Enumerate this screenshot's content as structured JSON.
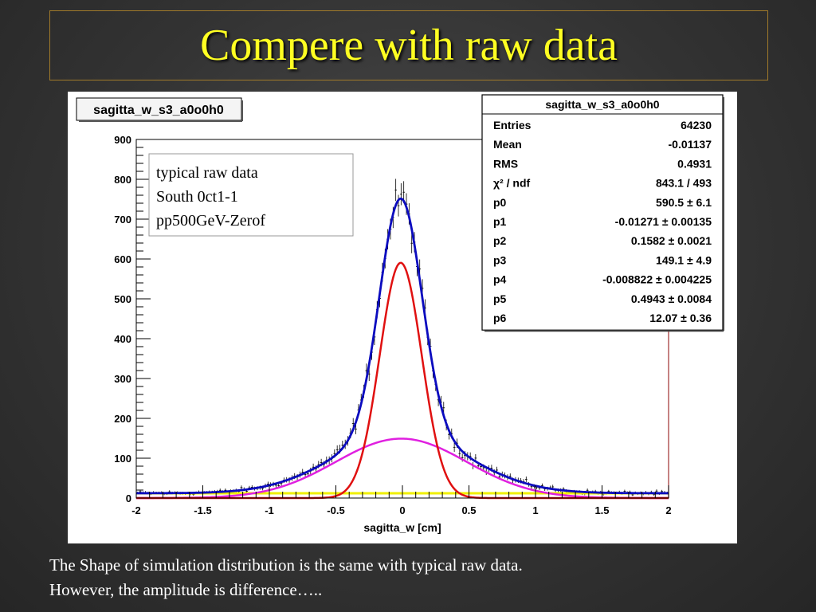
{
  "slide": {
    "title": "Compere with raw data",
    "caption_lines": [
      "The Shape of simulation distribution is the same with typical raw data.",
      "However, the amplitude is difference….."
    ]
  },
  "chart_data": {
    "type": "line",
    "title": "sagitta_w_s3_a0o0h0",
    "xlabel": "sagitta_w [cm]",
    "ylabel": "",
    "xlim": [
      -2,
      2
    ],
    "ylim": [
      0,
      900
    ],
    "xticks": [
      "-2",
      "-1.5",
      "-1",
      "-0.5",
      "0",
      "0.5",
      "1",
      "1.5",
      "2"
    ],
    "yticks": [
      "0",
      "100",
      "200",
      "300",
      "400",
      "500",
      "600",
      "700",
      "800",
      "900"
    ],
    "annotation": [
      "typical  raw data",
      "South 0ct1-1",
      "pp500GeV-Zerof"
    ],
    "stats_box": {
      "title": "sagitta_w_s3_a0o0h0",
      "rows": [
        {
          "label": "Entries",
          "value": "64230"
        },
        {
          "label": "Mean",
          "value": "-0.01137"
        },
        {
          "label": "RMS",
          "value": "0.4931"
        },
        {
          "label": "χ² / ndf",
          "value": "843.1 / 493"
        },
        {
          "label": "p0",
          "value": "590.5 ± 6.1"
        },
        {
          "label": "p1",
          "value": "-0.01271 ± 0.00135"
        },
        {
          "label": "p2",
          "value": "0.1582 ± 0.0021"
        },
        {
          "label": "p3",
          "value": "149.1 ± 4.9"
        },
        {
          "label": "p4",
          "value": "-0.008822 ± 0.004225"
        },
        {
          "label": "p5",
          "value": "0.4943 ± 0.0084"
        },
        {
          "label": "p6",
          "value": "12.07 ± 0.36"
        }
      ]
    },
    "fit_parameters": {
      "narrow_gaussian": {
        "amplitude": 590.5,
        "mean": -0.01271,
        "sigma": 0.1582
      },
      "wide_gaussian": {
        "amplitude": 149.1,
        "mean": -0.008822,
        "sigma": 0.4943
      },
      "constant": 12.07
    },
    "series": [
      {
        "role": "data",
        "points": "histogram with error bars",
        "color": "#000000"
      },
      {
        "role": "total fit",
        "color": "#0b0bbf"
      },
      {
        "role": "narrow component",
        "color": "#e01010"
      },
      {
        "role": "wide component",
        "color": "#e020e0"
      },
      {
        "role": "constant component",
        "color": "#f0f000"
      }
    ]
  }
}
